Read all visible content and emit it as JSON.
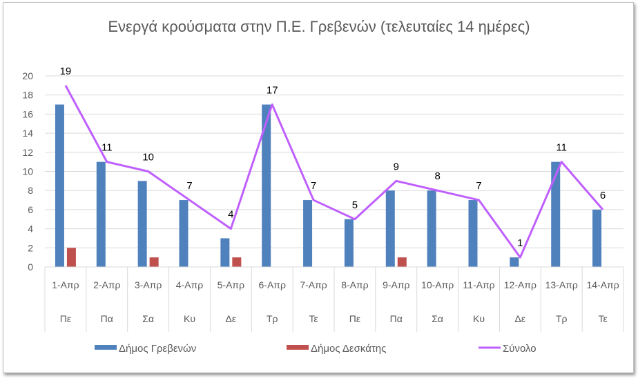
{
  "chart_data": {
    "type": "bar",
    "title": "Ενεργά κρούσματα στην Π.Ε. Γρεβενών (τελευταίες 14 ημέρες)",
    "categories": [
      "1-Απρ",
      "2-Απρ",
      "3-Απρ",
      "4-Απρ",
      "5-Απρ",
      "6-Απρ",
      "7-Απρ",
      "8-Απρ",
      "9-Απρ",
      "10-Απρ",
      "11-Απρ",
      "12-Απρ",
      "13-Απρ",
      "14-Απρ"
    ],
    "sub_categories": [
      "Πε",
      "Πα",
      "Σα",
      "Κυ",
      "Δε",
      "Τρ",
      "Τε",
      "Πε",
      "Πα",
      "Σα",
      "Κυ",
      "Δε",
      "Τρ",
      "Τε"
    ],
    "series": [
      {
        "name": "Δήμος Γρεβενών",
        "type": "bar",
        "color": "#4f81bd",
        "values": [
          17,
          11,
          9,
          7,
          3,
          17,
          7,
          5,
          8,
          8,
          7,
          1,
          11,
          6
        ]
      },
      {
        "name": "Δήμος Δεσκάτης",
        "type": "bar",
        "color": "#c0504d",
        "values": [
          2,
          0,
          1,
          0,
          1,
          0,
          0,
          0,
          1,
          0,
          0,
          0,
          0,
          0
        ]
      },
      {
        "name": "Σύνολο",
        "type": "line",
        "color": "#bf5fff",
        "values": [
          19,
          11,
          10,
          7,
          4,
          17,
          7,
          5,
          9,
          8,
          7,
          1,
          11,
          6
        ],
        "data_labels": true
      }
    ],
    "ylim": [
      0,
      20
    ],
    "yticks": [
      0,
      2,
      4,
      6,
      8,
      10,
      12,
      14,
      16,
      18,
      20
    ],
    "grid": true,
    "legend": "bottom"
  }
}
